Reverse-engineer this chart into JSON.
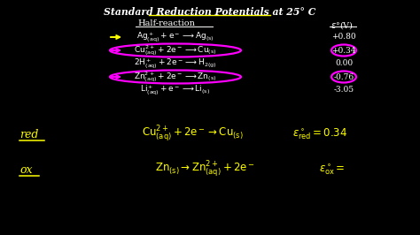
{
  "bg_color": "#000000",
  "title": "Standard Reduction Potentials at 25° C",
  "yellow": "#ffff00",
  "magenta": "#ff00ff",
  "white": "#ffffff",
  "fig_w": 4.74,
  "fig_h": 2.66,
  "dpi": 100
}
